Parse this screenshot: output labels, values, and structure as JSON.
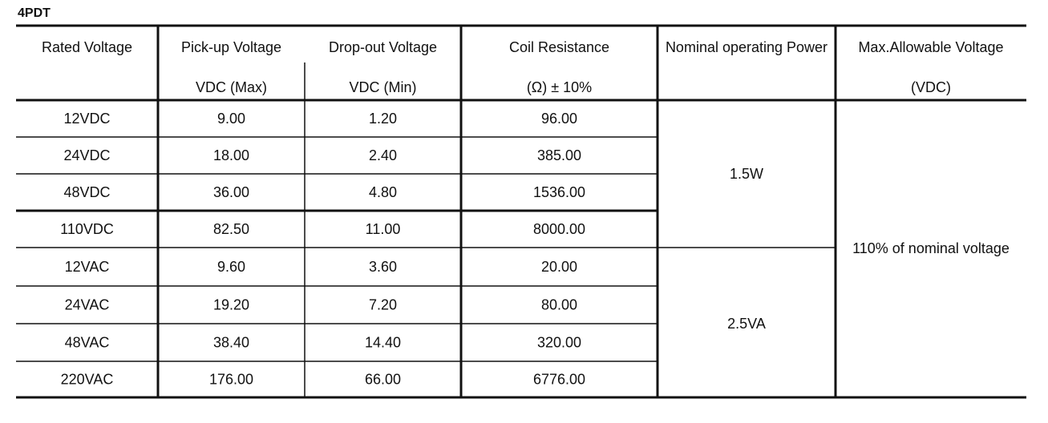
{
  "title": "4PDT",
  "table": {
    "columns": [
      {
        "label": "Rated Voltage"
      },
      {
        "label": "Pick-up Voltage",
        "unit": "VDC (Max)"
      },
      {
        "label": "Drop-out Voltage",
        "unit": "VDC (Min)"
      },
      {
        "label": "Coil Resistance",
        "unit": "(Ω)  ± 10%"
      },
      {
        "label": "Nominal operating Power"
      },
      {
        "label": "Max.Allowable Voltage",
        "unit": "(VDC)"
      }
    ],
    "rows": [
      [
        "12VDC",
        "9.00",
        "1.20",
        "96.00"
      ],
      [
        "24VDC",
        "18.00",
        "2.40",
        "385.00"
      ],
      [
        "48VDC",
        "36.00",
        "4.80",
        "1536.00"
      ],
      [
        "110VDC",
        "82.50",
        "11.00",
        "8000.00"
      ],
      [
        "12VAC",
        "9.60",
        "3.60",
        "20.00"
      ],
      [
        "24VAC",
        "19.20",
        "7.20",
        "80.00"
      ],
      [
        "48VAC",
        "38.40",
        "14.40",
        "320.00"
      ],
      [
        "220VAC",
        "176.00",
        "66.00",
        "6776.00"
      ]
    ],
    "power": [
      "1.5W",
      "2.5VA"
    ],
    "max_voltage": "110% of nominal voltage"
  }
}
